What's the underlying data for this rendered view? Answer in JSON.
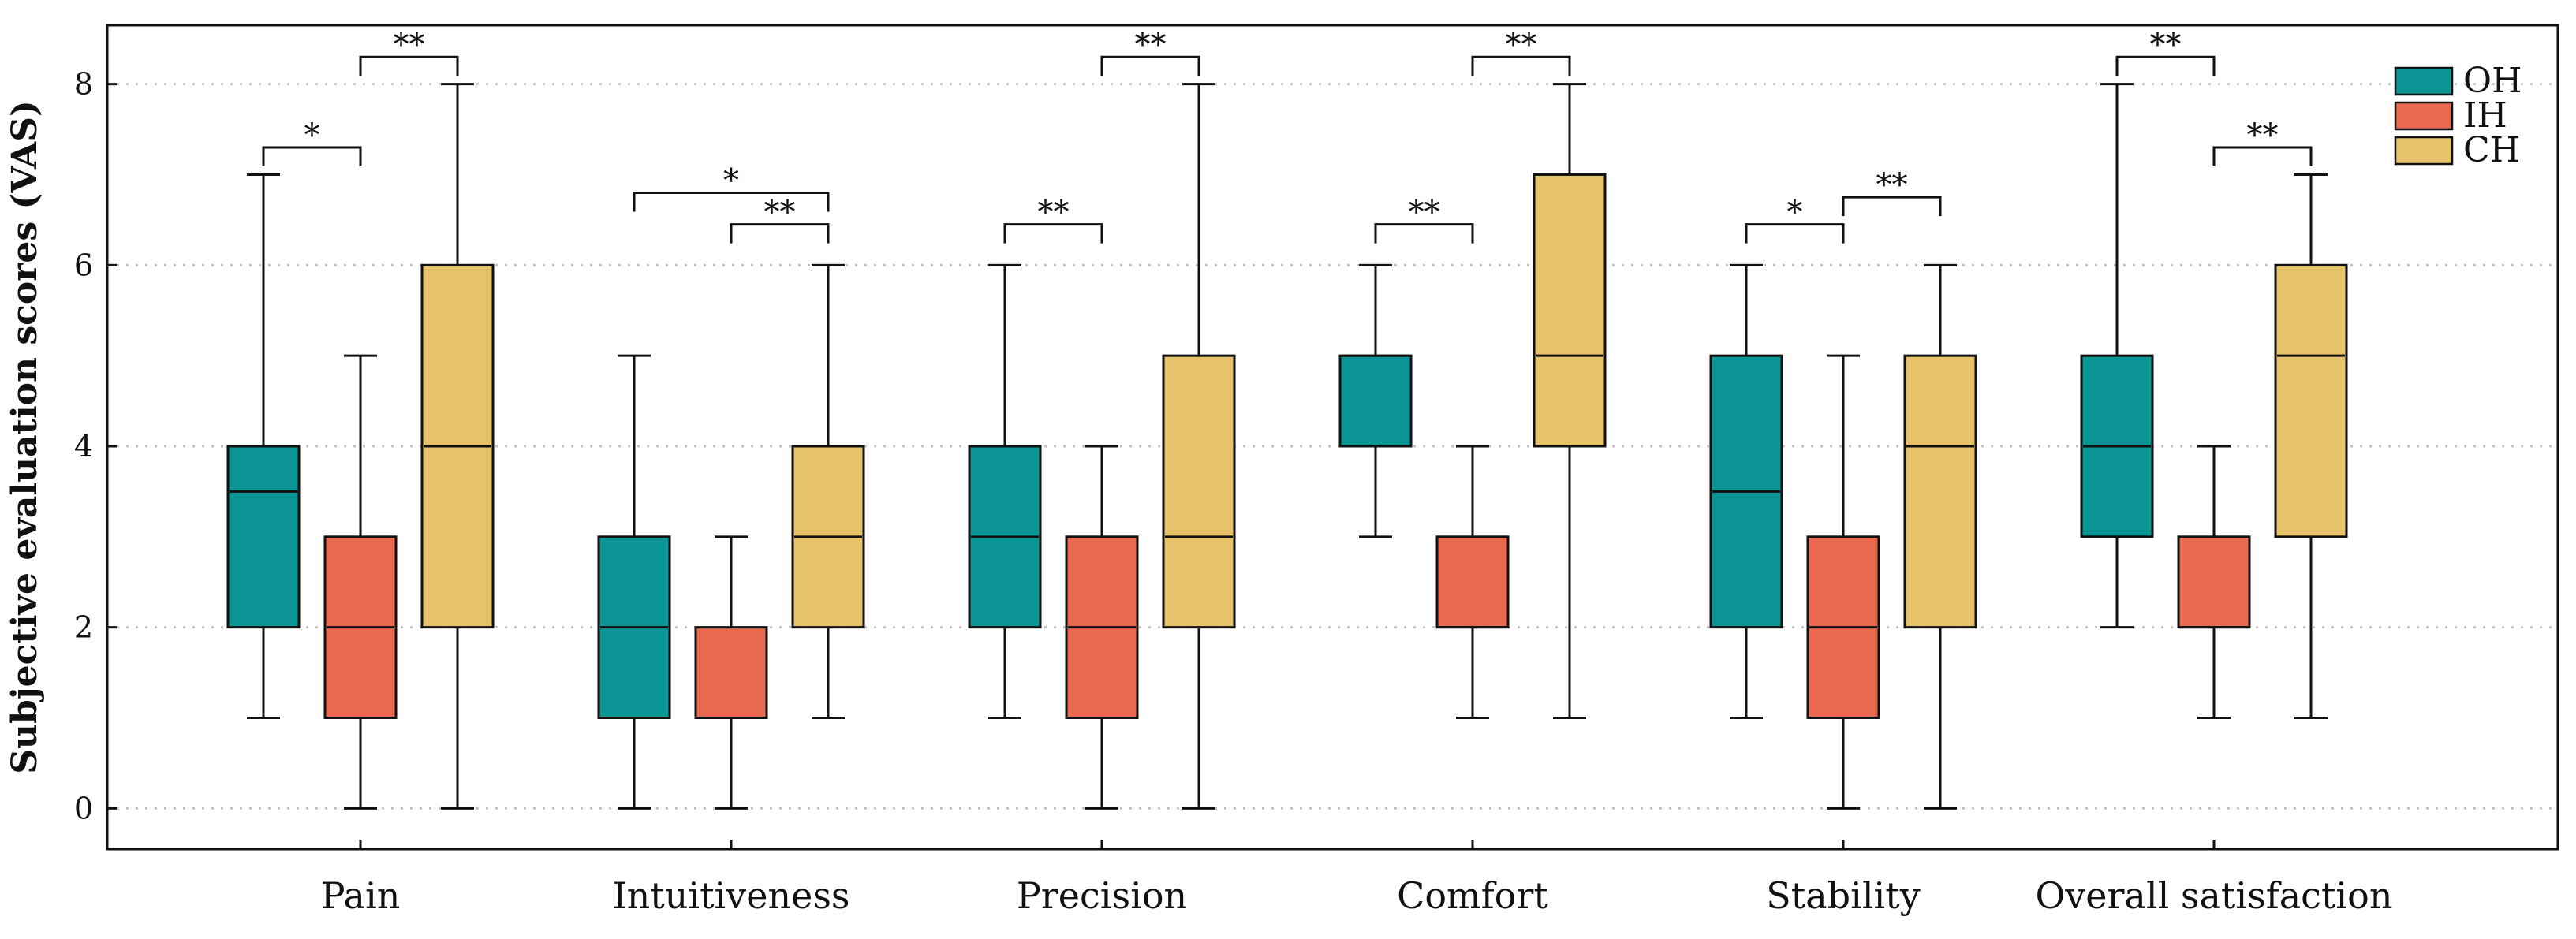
{
  "chart_data": {
    "type": "box",
    "title": "",
    "xlabel": "",
    "ylabel": "Subjective evaluation scores (VAS)",
    "ylim": [
      -0.45,
      8.65
    ],
    "yticks": [
      0,
      2,
      4,
      6,
      8
    ],
    "grid": "horizontal dotted at y ticks",
    "legend_position": "top-right",
    "series": [
      {
        "name": "OH",
        "color": "#0a9494"
      },
      {
        "name": "IH",
        "color": "#e8694f"
      },
      {
        "name": "CH",
        "color": "#e6c36a"
      }
    ],
    "categories": [
      "Pain",
      "Intuitiveness",
      "Precision",
      "Comfort",
      "Stability",
      "Overall satisfaction"
    ],
    "boxes": [
      [
        {
          "min": 1,
          "q1": 2,
          "median": 3.5,
          "q3": 4,
          "max": 7
        },
        {
          "min": 0,
          "q1": 1,
          "median": 2,
          "q3": 3,
          "max": 5
        },
        {
          "min": 0,
          "q1": 2,
          "median": 4,
          "q3": 6,
          "max": 8
        }
      ],
      [
        {
          "min": 0,
          "q1": 1,
          "median": 2,
          "q3": 3,
          "max": 5
        },
        {
          "min": 0,
          "q1": 1,
          "median": 1,
          "q3": 2,
          "max": 3
        },
        {
          "min": 1,
          "q1": 2,
          "median": 3,
          "q3": 4,
          "max": 6
        }
      ],
      [
        {
          "min": 1,
          "q1": 2,
          "median": 3,
          "q3": 4,
          "max": 6
        },
        {
          "min": 0,
          "q1": 1,
          "median": 2,
          "q3": 3,
          "max": 4
        },
        {
          "min": 0,
          "q1": 2,
          "median": 3,
          "q3": 5,
          "max": 8
        }
      ],
      [
        {
          "min": 3,
          "q1": 4,
          "median": 5,
          "q3": 5,
          "max": 6
        },
        {
          "min": 1,
          "q1": 2,
          "median": 2,
          "q3": 3,
          "max": 4
        },
        {
          "min": 1,
          "q1": 4,
          "median": 5,
          "q3": 7,
          "max": 8
        }
      ],
      [
        {
          "min": 1,
          "q1": 2,
          "median": 3.5,
          "q3": 5,
          "max": 6
        },
        {
          "min": 0,
          "q1": 1,
          "median": 2,
          "q3": 3,
          "max": 5
        },
        {
          "min": 0,
          "q1": 2,
          "median": 4,
          "q3": 5,
          "max": 6
        }
      ],
      [
        {
          "min": 2,
          "q1": 3,
          "median": 4,
          "q3": 5,
          "max": 8
        },
        {
          "min": 1,
          "q1": 2,
          "median": 2,
          "q3": 3,
          "max": 4
        },
        {
          "min": 1,
          "q1": 3,
          "median": 5,
          "q3": 6,
          "max": 7
        }
      ]
    ],
    "significance": [
      {
        "category": 0,
        "from": 0,
        "to": 1,
        "label": "*",
        "y": 7.3
      },
      {
        "category": 0,
        "from": 1,
        "to": 2,
        "label": "**",
        "y": 8.3
      },
      {
        "category": 1,
        "from": 0,
        "to": 2,
        "label": "*",
        "y": 6.8
      },
      {
        "category": 1,
        "from": 1,
        "to": 2,
        "label": "**",
        "y": 6.45
      },
      {
        "category": 2,
        "from": 0,
        "to": 1,
        "label": "**",
        "y": 6.45
      },
      {
        "category": 2,
        "from": 1,
        "to": 2,
        "label": "**",
        "y": 8.3
      },
      {
        "category": 3,
        "from": 0,
        "to": 1,
        "label": "**",
        "y": 6.45
      },
      {
        "category": 3,
        "from": 1,
        "to": 2,
        "label": "**",
        "y": 8.3
      },
      {
        "category": 4,
        "from": 0,
        "to": 1,
        "label": "*",
        "y": 6.45
      },
      {
        "category": 4,
        "from": 1,
        "to": 2,
        "label": "**",
        "y": 6.75
      },
      {
        "category": 5,
        "from": 0,
        "to": 1,
        "label": "**",
        "y": 8.3
      },
      {
        "category": 5,
        "from": 1,
        "to": 2,
        "label": "**",
        "y": 7.3
      }
    ]
  }
}
